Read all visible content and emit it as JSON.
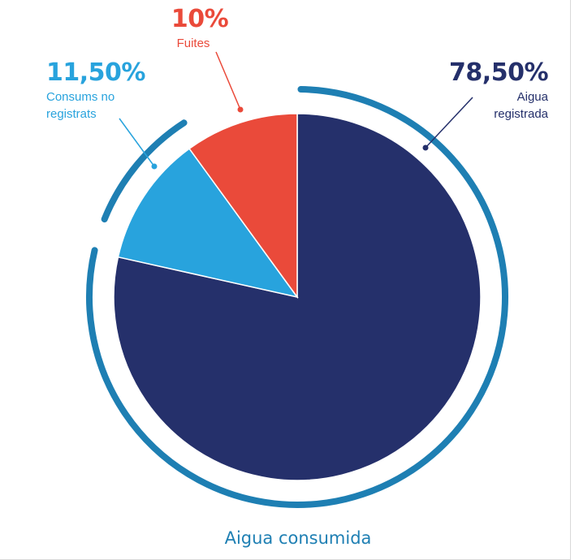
{
  "chart_data": {
    "type": "pie",
    "title": "Aigua consumida",
    "slices": [
      {
        "value_label": "78,50%",
        "label_lines": [
          "Aigua",
          "registrada"
        ],
        "value": 78.5,
        "color": "#25306b"
      },
      {
        "value_label": "11,50%",
        "label_lines": [
          "Consums no",
          "registrats"
        ],
        "value": 11.5,
        "color": "#28a3dd"
      },
      {
        "value_label": "10%",
        "label_lines": [
          "Fuites"
        ],
        "value": 10,
        "color": "#ea4a3a"
      }
    ],
    "ring_color": "#1e7fb3",
    "caption_color": "#1e7fb3"
  }
}
